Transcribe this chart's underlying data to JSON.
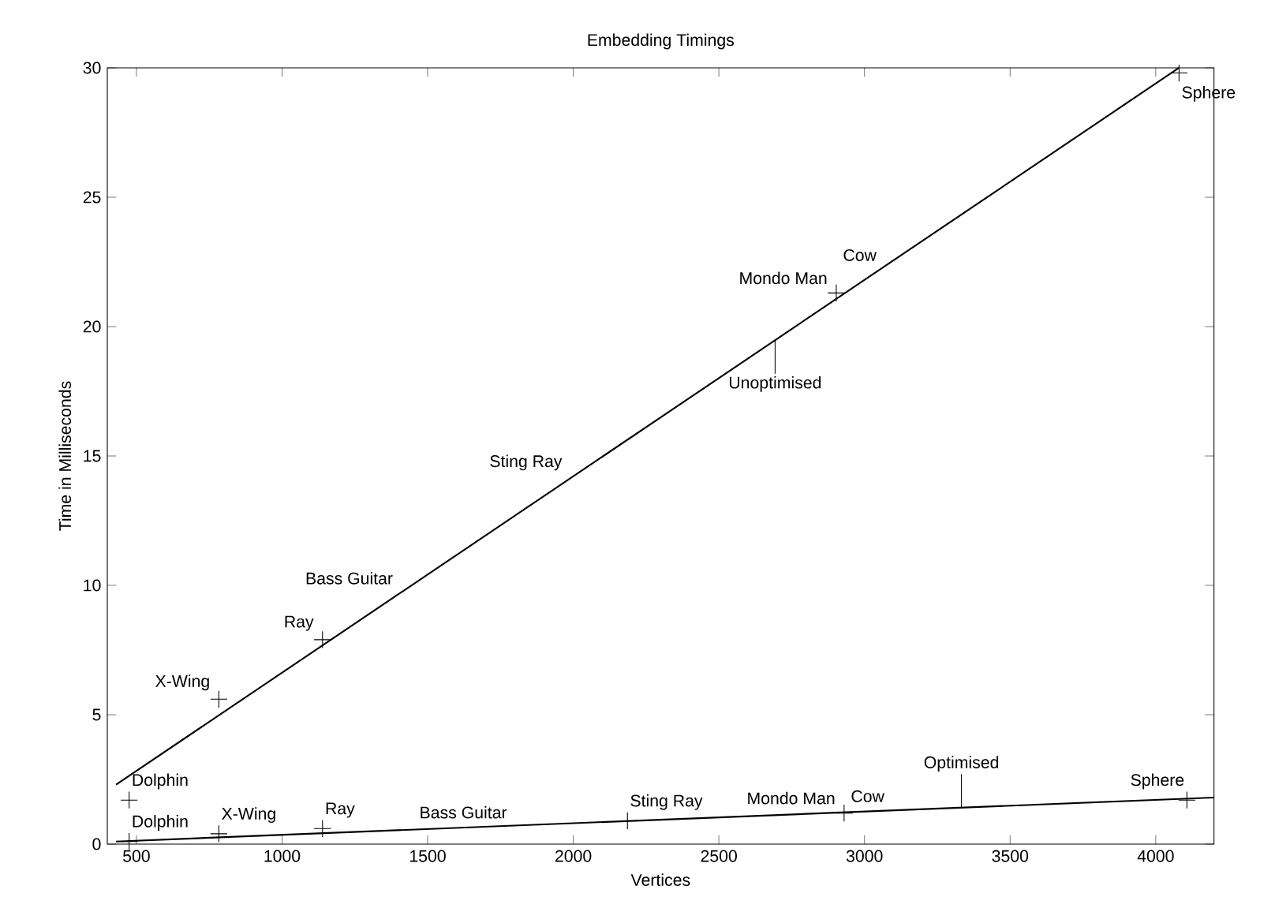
{
  "chart_data": {
    "type": "line",
    "title": "Embedding Timings",
    "xlabel": "Vertices",
    "ylabel": "Time in Milliseconds",
    "xlim": [
      400,
      4200
    ],
    "ylim": [
      0,
      30
    ],
    "xticks": [
      500,
      1000,
      1500,
      2000,
      2500,
      3000,
      3500,
      4000
    ],
    "yticks": [
      0,
      5,
      10,
      15,
      20,
      25,
      30
    ],
    "series": [
      {
        "name": "Unoptimised",
        "color": "#000000",
        "x": [
          430,
          4080
        ],
        "values": [
          2.3,
          30
        ]
      },
      {
        "name": "Optimised",
        "color": "#000000",
        "x": [
          430,
          4200
        ],
        "values": [
          0.1,
          1.8
        ]
      },
      {
        "type": "scatter",
        "marker": "cross",
        "color": "#000000",
        "x": [
          475,
          783,
          1139,
          2903,
          4080
        ],
        "values": [
          1.7,
          5.6,
          7.9,
          21.3,
          29.8
        ]
      },
      {
        "type": "scatter",
        "marker": "cross",
        "color": "#000000",
        "x": [
          475,
          783,
          1139,
          2186,
          2930,
          4107
        ],
        "values": [
          0.1,
          0.4,
          0.6,
          0.9,
          1.2,
          1.7
        ]
      }
    ],
    "annotations": [
      {
        "text": "Dolphin",
        "x": 475,
        "y": 1.7
      },
      {
        "text": "X-Wing",
        "x": 783,
        "y": 5.6
      },
      {
        "text": "Ray",
        "x": 1139,
        "y": 7.9
      },
      {
        "text": "Bass Guitar",
        "x": 1411,
        "y": 9.7
      },
      {
        "text": "Sting Ray",
        "x": 1992,
        "y": 14.1
      },
      {
        "text": "Mondo Man",
        "x": 2903,
        "y": 21.3
      },
      {
        "text": "Cow",
        "x": 2903,
        "y": 21.3
      },
      {
        "text": "Sphere",
        "x": 4080,
        "y": 29.8
      },
      {
        "text": "Dolphin",
        "x": 475,
        "y": 0.1
      },
      {
        "text": "X-Wing",
        "x": 783,
        "y": 0.4
      },
      {
        "text": "Ray",
        "x": 1139,
        "y": 0.6
      },
      {
        "text": "Bass Guitar",
        "x": 1463,
        "y": 0.57
      },
      {
        "text": "Sting Ray",
        "x": 2186,
        "y": 0.9
      },
      {
        "text": "Mondo Man",
        "x": 2930,
        "y": 1.2
      },
      {
        "text": "Cow",
        "x": 2930,
        "y": 1.2
      },
      {
        "text": "Sphere",
        "x": 4107,
        "y": 1.7
      }
    ]
  }
}
